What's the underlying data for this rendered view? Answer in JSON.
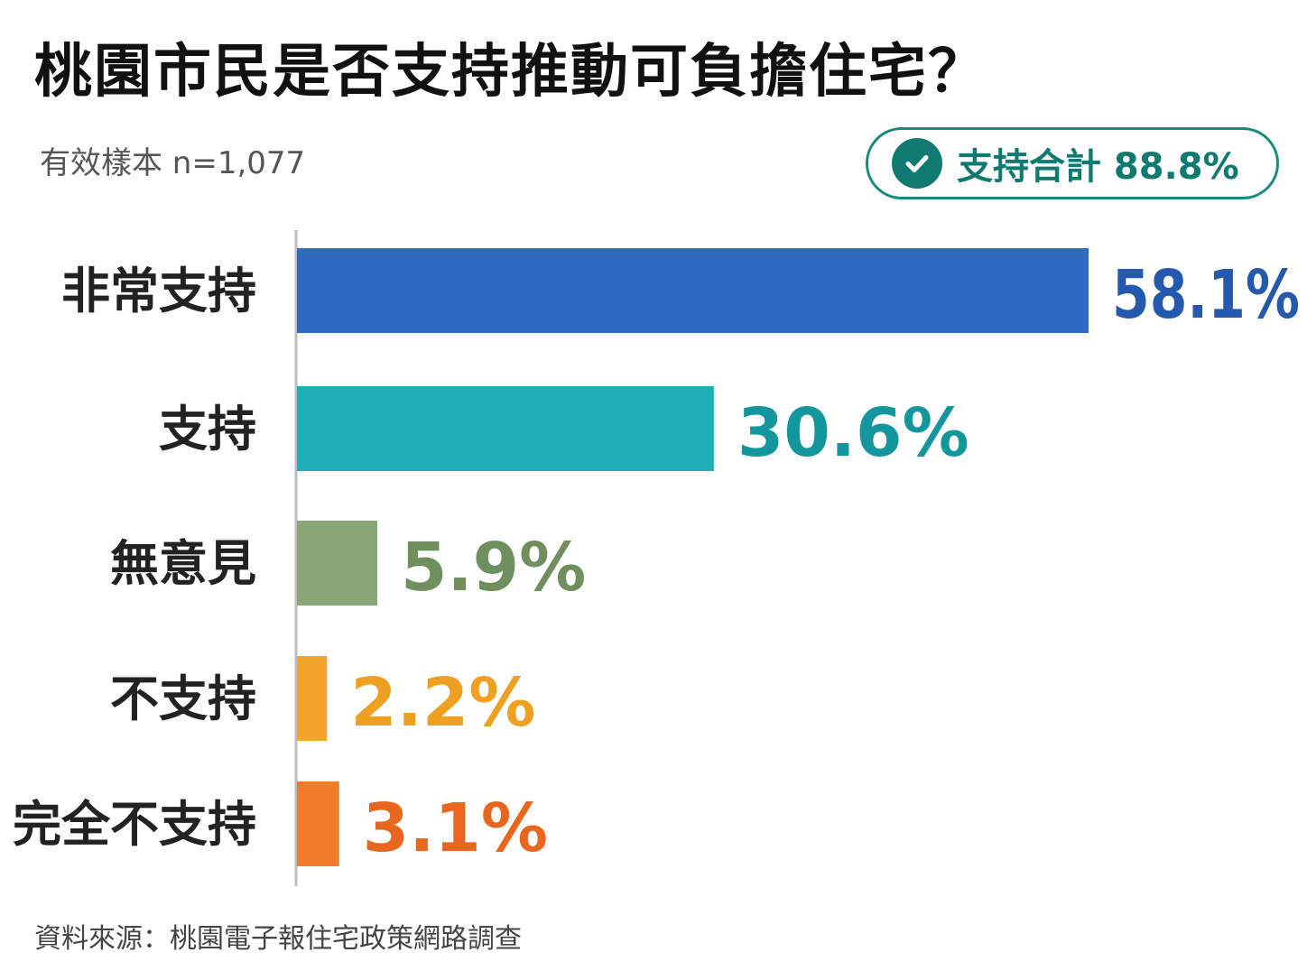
{
  "header": {
    "title": "桃園市民是否支持推動可負擔住宅？",
    "sample": "有效樣本 n=1,077"
  },
  "badge": {
    "icon": "check-circle-icon",
    "text": "支持合計 88.8%",
    "color": "#0f7a70"
  },
  "chart_data": {
    "type": "bar",
    "orientation": "horizontal",
    "categories": [
      "非常支持",
      "支持",
      "無意見",
      "不支持",
      "完全不支持"
    ],
    "values": [
      58.1,
      30.6,
      5.9,
      2.2,
      3.1
    ],
    "value_labels": [
      "58.1%",
      "30.6%",
      "5.9%",
      "2.2%",
      "3.1%"
    ],
    "colors": [
      "#2e6bc0",
      "#1faeb5",
      "#8ba676",
      "#f2a52a",
      "#f07c28"
    ],
    "label_colors": [
      "#2559ae",
      "#14979c",
      "#6f8f5c",
      "#f0a020",
      "#e8661e"
    ],
    "title": "",
    "xlabel": "",
    "ylabel": "",
    "grid": false,
    "legend": "none"
  },
  "footer": {
    "source": "資料來源：桃園電子報住宅政策網路調查"
  }
}
